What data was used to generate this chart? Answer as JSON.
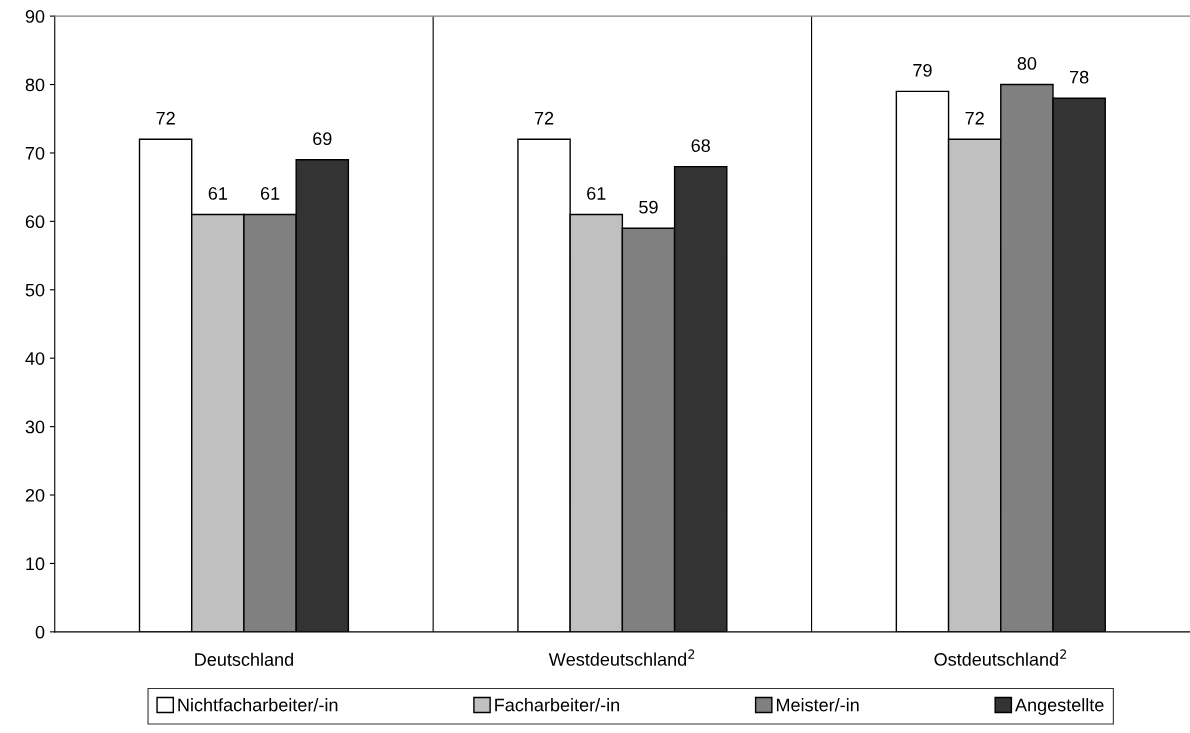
{
  "chart_data": {
    "type": "bar",
    "categories": [
      "Deutschland",
      "Westdeutschland$^{2}$",
      "Ostdeutschland$^{2}$"
    ],
    "series": [
      {
        "name": "Nichtfacharbeiter/-in",
        "color": "#ffffff",
        "values": [
          72,
          72,
          79
        ]
      },
      {
        "name": "Facharbeiter/-in",
        "color": "#c0c0c0",
        "values": [
          61,
          61,
          72
        ]
      },
      {
        "name": "Meister/-in",
        "color": "#808080",
        "values": [
          61,
          59,
          80
        ]
      },
      {
        "name": "Angestellte",
        "color": "#333333",
        "values": [
          69,
          68,
          78
        ]
      }
    ],
    "ylim": [
      0,
      90
    ],
    "yticks": [
      0,
      10,
      20,
      30,
      40,
      50,
      60,
      70,
      80,
      90
    ],
    "grid": false,
    "legend": "bottom",
    "data_labels": true
  }
}
